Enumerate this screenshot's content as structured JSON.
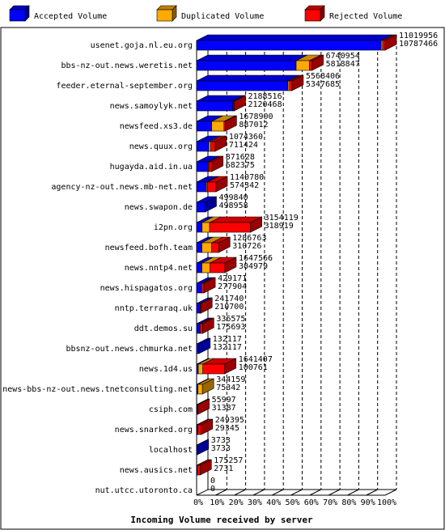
{
  "chart_data": {
    "type": "bar",
    "orientation": "horizontal",
    "stacked": true,
    "bar_style": "3d",
    "legend_position": "top",
    "xlabel": "Incoming Volume received by server",
    "x_ticks": [
      "0%",
      "10%",
      "20%",
      "30%",
      "40%",
      "50%",
      "60%",
      "70%",
      "80%",
      "90%",
      "100%"
    ],
    "grid": "vertical dashed",
    "xlim": [
      0,
      100
    ],
    "series": [
      {
        "name": "Accepted Volume",
        "color": "#0000ff"
      },
      {
        "name": "Duplicated Volume",
        "color": "#ffaa00"
      },
      {
        "name": "Rejected Volume",
        "color": "#ff0000"
      }
    ],
    "servers": [
      {
        "name": "usenet.goja.nl.eu.org",
        "total": 11019956,
        "accepted": 10787466
      },
      {
        "name": "bbs-nz-out.news.weretis.net",
        "total": 6740954,
        "accepted": 5818847
      },
      {
        "name": "feeder.eternal-september.org",
        "total": 5568406,
        "accepted": 5347685
      },
      {
        "name": "news.samoylyk.net",
        "total": 2188516,
        "accepted": 2120468
      },
      {
        "name": "newsfeed.xs3.de",
        "total": 1678900,
        "accepted": 887012
      },
      {
        "name": "news.quux.org",
        "total": 1074360,
        "accepted": 711424
      },
      {
        "name": "hugayda.aid.in.ua",
        "total": 871628,
        "accepted": 682375
      },
      {
        "name": "agency-nz-out.news.mb-net.net",
        "total": 1140780,
        "accepted": 574342
      },
      {
        "name": "news.swapon.de",
        "total": 499840,
        "accepted": 498958
      },
      {
        "name": "i2pn.org",
        "total": 3154119,
        "accepted": 318919
      },
      {
        "name": "newsfeed.bofh.team",
        "total": 1286763,
        "accepted": 310726
      },
      {
        "name": "news.nntp4.net",
        "total": 1647566,
        "accepted": 304979
      },
      {
        "name": "news.hispagatos.org",
        "total": 429171,
        "accepted": 277904
      },
      {
        "name": "nntp.terraraq.uk",
        "total": 241740,
        "accepted": 210700
      },
      {
        "name": "ddt.demos.su",
        "total": 336575,
        "accepted": 175693
      },
      {
        "name": "bbsnz-out.news.chmurka.net",
        "total": 132117,
        "accepted": 132117
      },
      {
        "name": "news.1d4.us",
        "total": 1641407,
        "accepted": 100761
      },
      {
        "name": "news-bbs-nz-out.news.tnetconsulting.net",
        "total": 344159,
        "accepted": 75342
      },
      {
        "name": "csiph.com",
        "total": 55997,
        "accepted": 31387
      },
      {
        "name": "news.snarked.org",
        "total": 249395,
        "accepted": 29345
      },
      {
        "name": "localhost",
        "total": 3733,
        "accepted": 3733
      },
      {
        "name": "news.ausics.net",
        "total": 175257,
        "accepted": 2731
      },
      {
        "name": "nut.utcc.utoronto.ca",
        "total": 0,
        "accepted": 0
      }
    ],
    "segments": [
      [
        97.9,
        0.8,
        1.3
      ],
      [
        52.8,
        7.0,
        1.4
      ],
      [
        48.5,
        0.8,
        1.3
      ],
      [
        19.2,
        0.2,
        0.4
      ],
      [
        8.0,
        6.5,
        0.7
      ],
      [
        6.5,
        1.0,
        2.3
      ],
      [
        6.2,
        0.3,
        1.5
      ],
      [
        5.2,
        0.5,
        4.6
      ],
      [
        4.5,
        0,
        0
      ],
      [
        2.9,
        4.0,
        21.7
      ],
      [
        2.8,
        5.2,
        3.7
      ],
      [
        2.8,
        4.2,
        8.0
      ],
      [
        2.5,
        0.4,
        1.0
      ],
      [
        1.9,
        0,
        0.3
      ],
      [
        1.6,
        0.3,
        1.2
      ],
      [
        1.2,
        0,
        0
      ],
      [
        0.9,
        2.4,
        11.6
      ],
      [
        0.7,
        2.4,
        0
      ],
      [
        0.3,
        0,
        0.2
      ],
      [
        0.3,
        0.2,
        1.8
      ],
      [
        0.1,
        0,
        0
      ],
      [
        0.1,
        0,
        1.5
      ],
      [
        0,
        0,
        0
      ]
    ]
  }
}
